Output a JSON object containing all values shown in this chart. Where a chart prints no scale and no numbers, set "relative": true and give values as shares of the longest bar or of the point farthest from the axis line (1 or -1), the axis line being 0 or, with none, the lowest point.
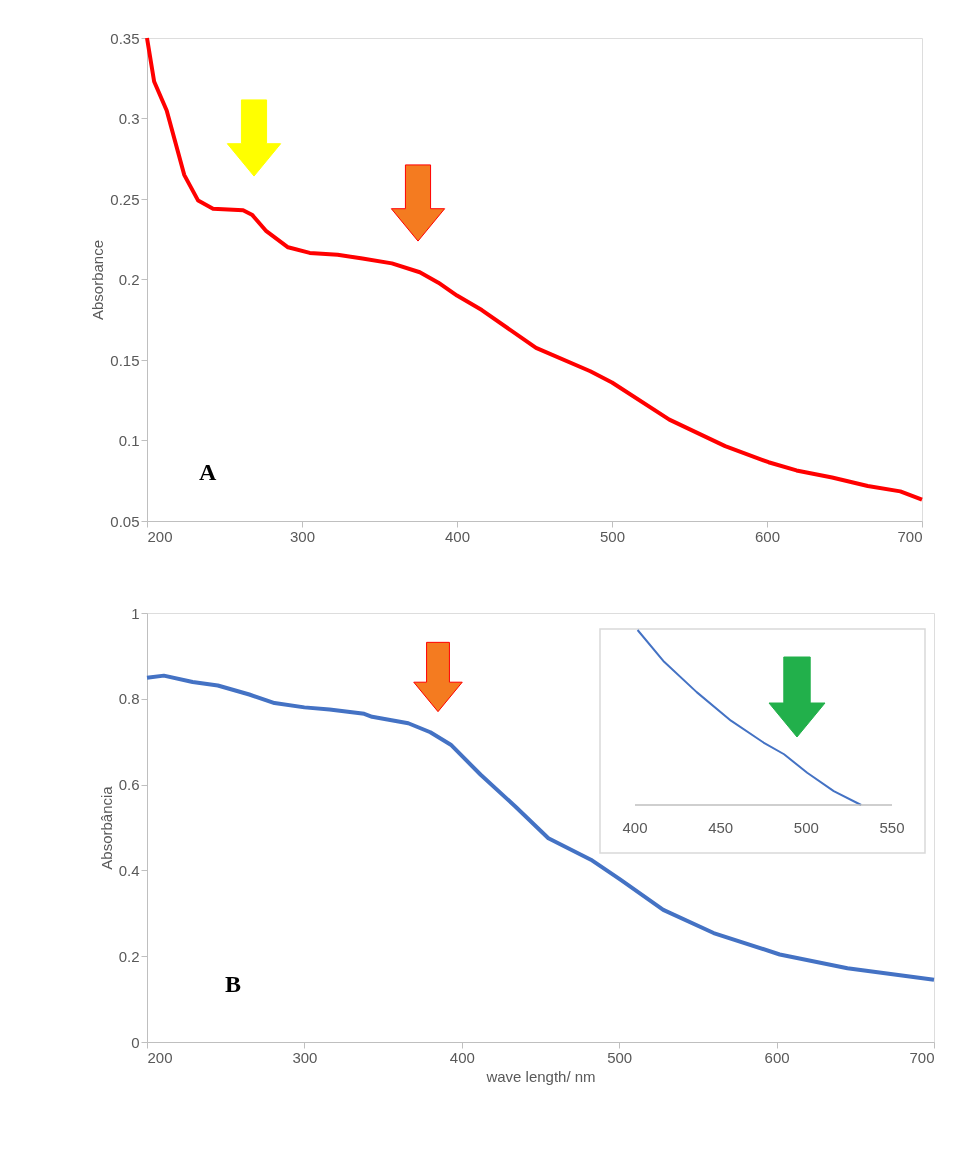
{
  "chart_data": [
    {
      "type": "line",
      "title": "A",
      "ylabel": "Absorbance",
      "xlim": [
        200,
        700
      ],
      "ylim": [
        0.05,
        0.35
      ],
      "xticks": [
        200,
        300,
        400,
        500,
        600,
        700
      ],
      "yticks": [
        0.05,
        0.1,
        0.15,
        0.2,
        0.25,
        0.3,
        0.35
      ],
      "x": [
        200,
        204.6,
        212.7,
        224,
        233,
        242.6,
        262,
        268,
        277,
        291,
        305,
        323,
        339,
        358,
        376,
        388,
        400,
        416,
        451,
        486,
        500,
        537,
        573,
        601,
        619,
        642,
        665,
        686,
        700
      ],
      "series": [
        {
          "color": "#ff0000",
          "values": [
            0.35,
            0.323,
            0.305,
            0.265,
            0.249,
            0.244,
            0.243,
            0.24,
            0.23,
            0.22,
            0.2165,
            0.2154,
            0.213,
            0.21,
            0.2045,
            0.198,
            0.19,
            0.181,
            0.1575,
            0.143,
            0.136,
            0.113,
            0.0965,
            0.0865,
            0.0814,
            0.077,
            0.0717,
            0.0684,
            0.0633
          ]
        }
      ]
    },
    {
      "type": "line",
      "title": "B",
      "xlabel": "wave length/ nm",
      "ylabel": "Absorbância",
      "xlim": [
        200,
        700
      ],
      "ylim": [
        0,
        1
      ],
      "xticks": [
        200,
        300,
        400,
        500,
        600,
        700
      ],
      "yticks": [
        0,
        0.2,
        0.4,
        0.6,
        0.8,
        1
      ],
      "x": [
        200,
        210.7,
        229,
        245,
        265,
        281,
        300,
        316,
        338,
        343,
        366,
        380,
        393,
        412,
        434,
        455,
        482,
        501,
        528,
        560,
        602,
        645,
        700
      ],
      "series": [
        {
          "color": "#4472c4",
          "values": [
            0.849,
            0.854,
            0.839,
            0.831,
            0.81,
            0.79,
            0.78,
            0.775,
            0.765,
            0.758,
            0.743,
            0.722,
            0.693,
            0.623,
            0.549,
            0.475,
            0.425,
            0.378,
            0.308,
            0.254,
            0.204,
            0.172,
            0.145
          ]
        }
      ]
    },
    {
      "type": "line",
      "relative": true,
      "xlim": [
        400,
        550
      ],
      "xticks": [
        400,
        450,
        500,
        550
      ],
      "x": [
        401.5,
        417,
        436,
        456,
        475,
        487,
        500.5,
        516,
        532
      ],
      "series": [
        {
          "color": "#4472c4",
          "values": [
            1.0,
            0.818,
            0.645,
            0.482,
            0.357,
            0.29,
            0.184,
            0.079,
            0
          ]
        }
      ]
    }
  ]
}
